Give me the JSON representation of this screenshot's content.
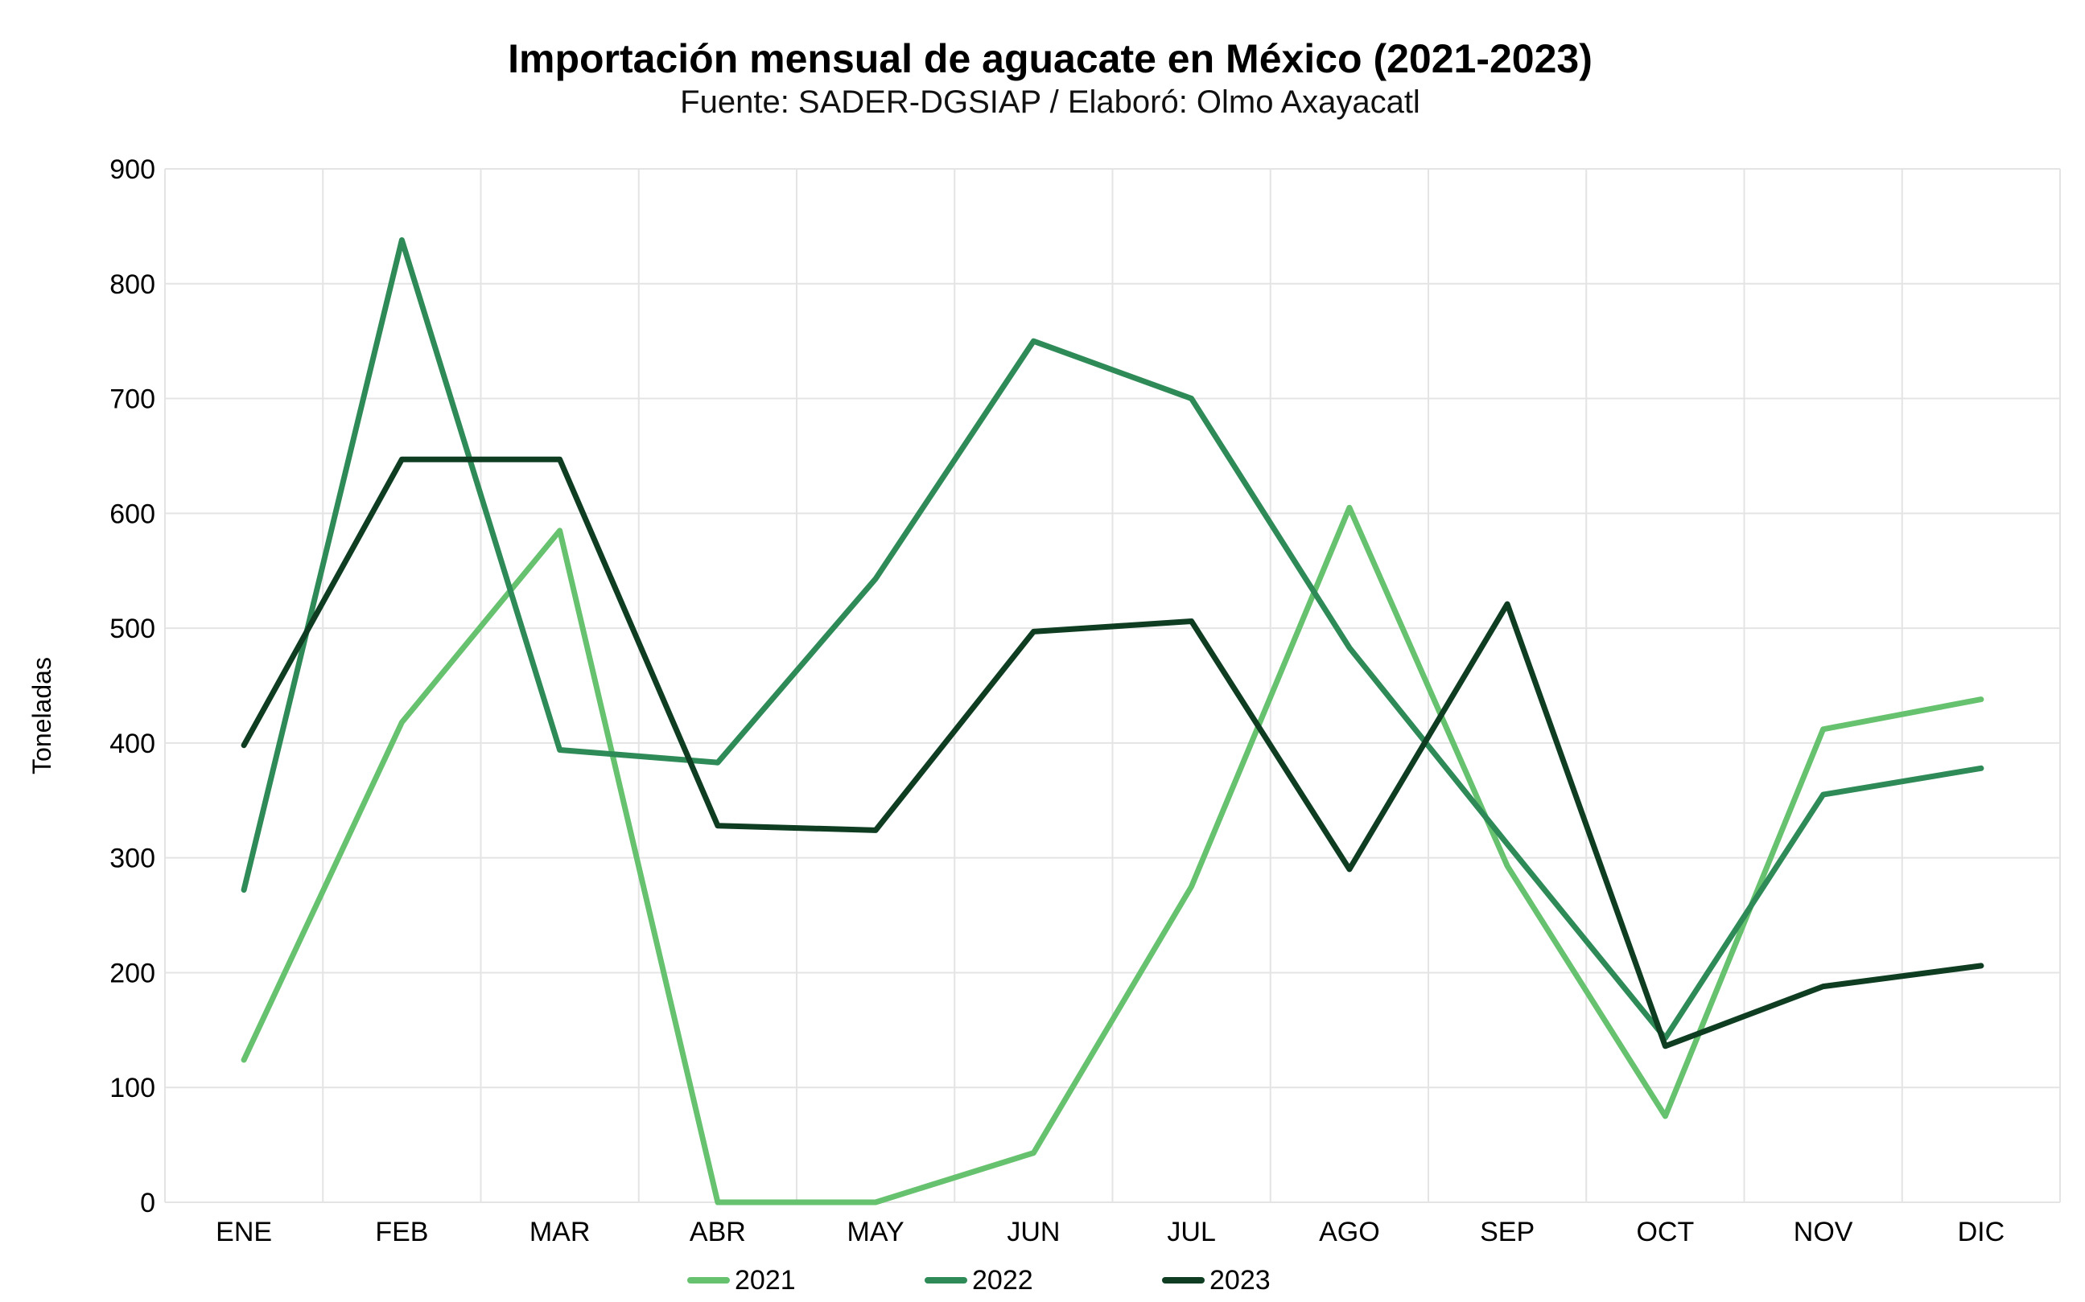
{
  "chart_data": {
    "type": "line",
    "title": "Importación mensual de aguacate en México (2021-2023)",
    "subtitle": "Fuente: SADER-DGSIAP / Elaboró: Olmo Axayacatl",
    "xlabel": "",
    "ylabel": "Toneladas",
    "ylim": [
      0,
      900
    ],
    "yticks": [
      "0",
      "100",
      "200",
      "300",
      "400",
      "500",
      "600",
      "700",
      "800",
      "900"
    ],
    "categories": [
      "ENE",
      "FEB",
      "MAR",
      "ABR",
      "MAY",
      "JUN",
      "JUL",
      "AGO",
      "SEP",
      "OCT",
      "NOV",
      "DIC"
    ],
    "grid": true,
    "legend_position": "bottom",
    "series": [
      {
        "name": "2021",
        "color": "#66c26e",
        "values": [
          124,
          418,
          585,
          0,
          0,
          43,
          275,
          605,
          293,
          75,
          412,
          438
        ]
      },
      {
        "name": "2022",
        "color": "#2e8b57",
        "values": [
          272,
          838,
          394,
          383,
          543,
          750,
          700,
          483,
          312,
          143,
          355,
          378
        ]
      },
      {
        "name": "2023",
        "color": "#0f3d22",
        "values": [
          398,
          647,
          647,
          328,
          324,
          497,
          506,
          290,
          521,
          136,
          188,
          206
        ]
      }
    ]
  }
}
